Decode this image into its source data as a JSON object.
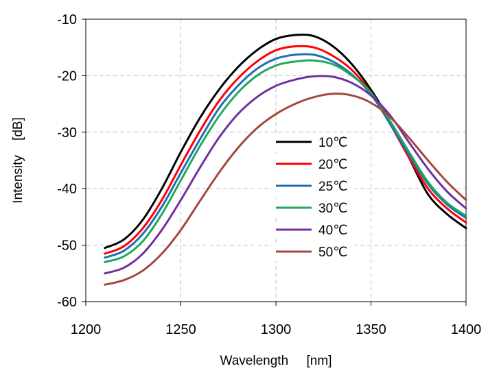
{
  "chart_data": {
    "type": "line",
    "title": "",
    "xlabel": "Wavelength     [nm]",
    "ylabel": "Intensity    [dB]",
    "xlim": [
      1200,
      1400
    ],
    "ylim": [
      -60,
      -10
    ],
    "x_ticks": [
      1200,
      1250,
      1300,
      1350,
      1400
    ],
    "x_tick_labels": [
      "1200",
      "1250",
      "1300",
      "1350",
      "1400"
    ],
    "y_ticks": [
      -60,
      -50,
      -40,
      -30,
      -20,
      -10
    ],
    "y_tick_labels": [
      "-60",
      "-50",
      "-40",
      "-30",
      "-20",
      "-10"
    ],
    "grid": true,
    "legend_position": "center",
    "x": [
      1210,
      1220,
      1230,
      1240,
      1250,
      1260,
      1270,
      1280,
      1290,
      1300,
      1310,
      1320,
      1330,
      1340,
      1350,
      1360,
      1370,
      1380,
      1390,
      1400
    ],
    "series": [
      {
        "name": "10℃",
        "color": "#000000",
        "values": [
          -50.5,
          -49.0,
          -45.5,
          -40.0,
          -33.5,
          -27.5,
          -22.5,
          -18.5,
          -15.5,
          -13.5,
          -12.8,
          -13.0,
          -14.8,
          -18.0,
          -22.5,
          -28.0,
          -34.5,
          -41.0,
          -44.5,
          -47.0
        ]
      },
      {
        "name": "20℃",
        "color": "#ff0000",
        "values": [
          -51.5,
          -50.2,
          -47.0,
          -42.0,
          -35.8,
          -29.8,
          -24.5,
          -20.5,
          -17.5,
          -15.5,
          -14.8,
          -15.0,
          -16.5,
          -19.0,
          -23.0,
          -28.5,
          -34.5,
          -40.0,
          -43.5,
          -46.0
        ]
      },
      {
        "name": "25℃",
        "color": "#1f6fb5",
        "values": [
          -52.2,
          -51.0,
          -48.0,
          -43.2,
          -37.2,
          -31.3,
          -25.8,
          -21.8,
          -18.8,
          -17.0,
          -16.3,
          -16.3,
          -17.5,
          -19.8,
          -23.3,
          -28.5,
          -34.0,
          -39.2,
          -42.8,
          -45.2
        ]
      },
      {
        "name": "30℃",
        "color": "#1fa85a",
        "values": [
          -53.0,
          -52.0,
          -49.3,
          -44.5,
          -38.5,
          -32.5,
          -27.2,
          -23.0,
          -20.0,
          -18.2,
          -17.5,
          -17.3,
          -18.0,
          -20.0,
          -23.0,
          -28.0,
          -33.5,
          -38.8,
          -42.5,
          -44.8
        ]
      },
      {
        "name": "40℃",
        "color": "#7030a0",
        "values": [
          -55.0,
          -54.0,
          -51.5,
          -47.3,
          -42.0,
          -36.3,
          -31.0,
          -26.8,
          -23.8,
          -21.8,
          -20.7,
          -20.1,
          -20.2,
          -21.3,
          -23.5,
          -27.0,
          -31.8,
          -36.5,
          -40.5,
          -43.5
        ]
      },
      {
        "name": "50℃",
        "color": "#a5463f",
        "values": [
          -57.0,
          -56.2,
          -54.5,
          -51.5,
          -47.3,
          -42.2,
          -37.2,
          -32.8,
          -29.3,
          -26.8,
          -25.0,
          -23.8,
          -23.2,
          -23.5,
          -24.8,
          -27.3,
          -31.0,
          -35.0,
          -38.8,
          -42.0
        ]
      }
    ]
  }
}
